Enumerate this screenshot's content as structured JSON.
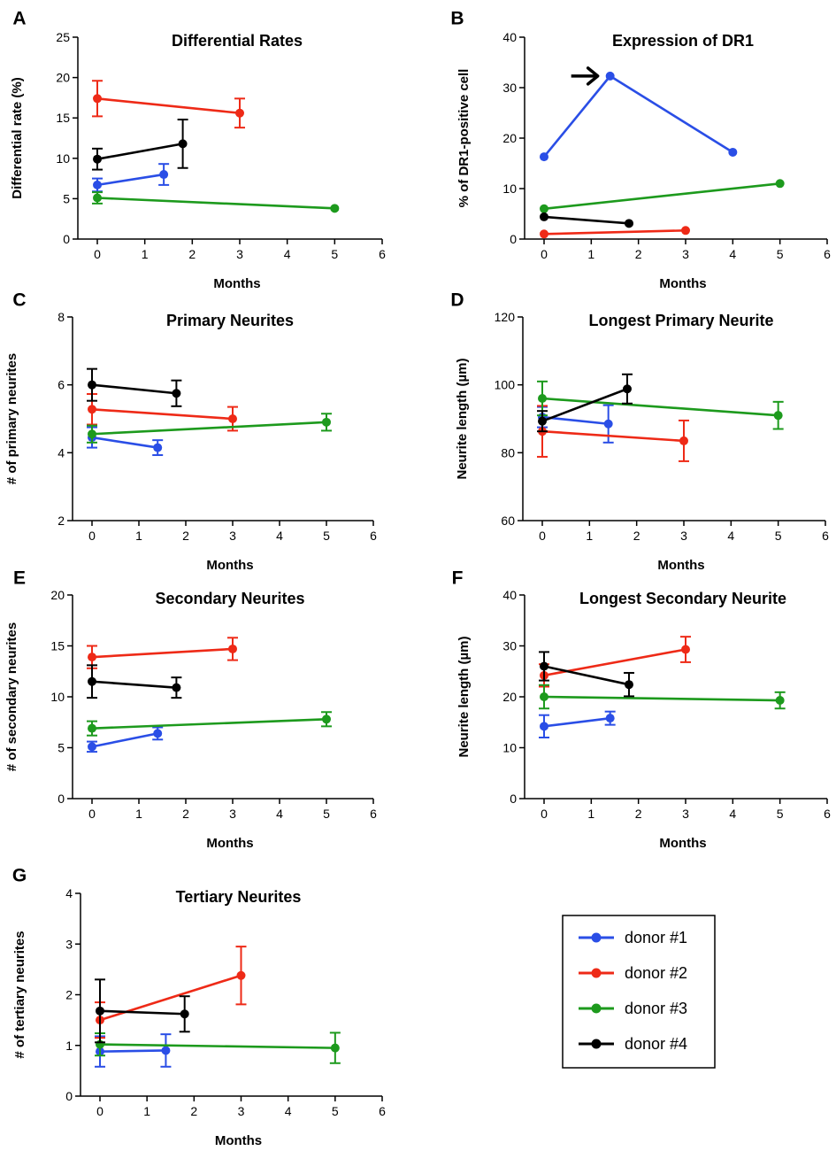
{
  "legend": {
    "entries": [
      {
        "label": "donor #1",
        "color": "#2a4ee6"
      },
      {
        "label": "donor #2",
        "color": "#ee2a17"
      },
      {
        "label": "donor #3",
        "color": "#1d9a1d"
      },
      {
        "label": "donor #4",
        "color": "#000000"
      }
    ]
  },
  "chart_data": [
    {
      "panel": "A",
      "type": "line",
      "title": "Differential Rates",
      "xlabel": "Months",
      "ylabel": "Differential rate (%)",
      "xlim": [
        0,
        6
      ],
      "ylim": [
        0,
        25
      ],
      "xticks": [
        0,
        1,
        2,
        3,
        4,
        5,
        6
      ],
      "yticks": [
        0,
        5,
        10,
        15,
        20,
        25
      ],
      "series": [
        {
          "name": "donor #1",
          "color": "#2a4ee6",
          "points": [
            {
              "x": 0,
              "y": 6.7,
              "err": 0.8
            },
            {
              "x": 1.4,
              "y": 8.0,
              "err": 1.3
            }
          ]
        },
        {
          "name": "donor #2",
          "color": "#ee2a17",
          "points": [
            {
              "x": 0,
              "y": 17.4,
              "err": 2.2
            },
            {
              "x": 3,
              "y": 15.6,
              "err": 1.8
            }
          ]
        },
        {
          "name": "donor #3",
          "color": "#1d9a1d",
          "points": [
            {
              "x": 0,
              "y": 5.1,
              "err": 0.7
            },
            {
              "x": 5,
              "y": 3.8,
              "err": 0
            }
          ]
        },
        {
          "name": "donor #4",
          "color": "#000000",
          "points": [
            {
              "x": 0,
              "y": 9.9,
              "err": 1.3
            },
            {
              "x": 1.8,
              "y": 11.8,
              "err": 3.0
            }
          ]
        }
      ]
    },
    {
      "panel": "B",
      "type": "line",
      "title": "Expression of DR1",
      "xlabel": "Months",
      "ylabel": "% of DR1-positive cell",
      "xlim": [
        0,
        6
      ],
      "ylim": [
        0,
        40
      ],
      "xticks": [
        0,
        1,
        2,
        3,
        4,
        5,
        6
      ],
      "yticks": [
        0,
        10,
        20,
        30,
        40
      ],
      "annotation": {
        "type": "arrow",
        "x": 1.4,
        "y": 32.3
      },
      "series": [
        {
          "name": "donor #1",
          "color": "#2a4ee6",
          "points": [
            {
              "x": 0,
              "y": 16.3,
              "err": 0
            },
            {
              "x": 1.4,
              "y": 32.3,
              "err": 0
            },
            {
              "x": 4,
              "y": 17.2,
              "err": 0
            }
          ]
        },
        {
          "name": "donor #2",
          "color": "#ee2a17",
          "points": [
            {
              "x": 0,
              "y": 1.0,
              "err": 0
            },
            {
              "x": 3,
              "y": 1.7,
              "err": 0
            }
          ]
        },
        {
          "name": "donor #3",
          "color": "#1d9a1d",
          "points": [
            {
              "x": 0,
              "y": 6.0,
              "err": 0
            },
            {
              "x": 5,
              "y": 11.0,
              "err": 0
            }
          ]
        },
        {
          "name": "donor #4",
          "color": "#000000",
          "points": [
            {
              "x": 0,
              "y": 4.4,
              "err": 0
            },
            {
              "x": 1.8,
              "y": 3.1,
              "err": 0
            }
          ]
        }
      ]
    },
    {
      "panel": "C",
      "type": "line",
      "title": "Primary Neurites",
      "xlabel": "Months",
      "ylabel": "# of primary neurites",
      "xlim": [
        0,
        6
      ],
      "ylim": [
        2,
        8
      ],
      "xticks": [
        0,
        1,
        2,
        3,
        4,
        5,
        6
      ],
      "yticks": [
        2,
        4,
        6,
        8
      ],
      "series": [
        {
          "name": "donor #1",
          "color": "#2a4ee6",
          "points": [
            {
              "x": 0,
              "y": 4.45,
              "err": 0.3
            },
            {
              "x": 1.4,
              "y": 4.15,
              "err": 0.22
            }
          ]
        },
        {
          "name": "donor #2",
          "color": "#ee2a17",
          "points": [
            {
              "x": 0,
              "y": 5.28,
              "err": 0.45
            },
            {
              "x": 3,
              "y": 5.0,
              "err": 0.35
            }
          ]
        },
        {
          "name": "donor #3",
          "color": "#1d9a1d",
          "points": [
            {
              "x": 0,
              "y": 4.55,
              "err": 0.25
            },
            {
              "x": 5,
              "y": 4.9,
              "err": 0.25
            }
          ]
        },
        {
          "name": "donor #4",
          "color": "#000000",
          "points": [
            {
              "x": 0,
              "y": 6.0,
              "err": 0.47
            },
            {
              "x": 1.8,
              "y": 5.75,
              "err": 0.38
            }
          ]
        }
      ]
    },
    {
      "panel": "D",
      "type": "line",
      "title": "Longest Primary Neurite",
      "xlabel": "Months",
      "ylabel": "Neurite length (µm)",
      "xlim": [
        0,
        6
      ],
      "ylim": [
        60,
        120
      ],
      "xticks": [
        0,
        1,
        2,
        3,
        4,
        5,
        6
      ],
      "yticks": [
        60,
        80,
        100,
        120
      ],
      "series": [
        {
          "name": "donor #1",
          "color": "#2a4ee6",
          "points": [
            {
              "x": 0,
              "y": 90.5,
              "err": 3.0
            },
            {
              "x": 1.4,
              "y": 88.5,
              "err": 5.5
            }
          ]
        },
        {
          "name": "donor #2",
          "color": "#ee2a17",
          "points": [
            {
              "x": 0,
              "y": 86.3,
              "err": 7.5
            },
            {
              "x": 3,
              "y": 83.5,
              "err": 6.0
            }
          ]
        },
        {
          "name": "donor #3",
          "color": "#1d9a1d",
          "points": [
            {
              "x": 0,
              "y": 96.0,
              "err": 5.0
            },
            {
              "x": 5,
              "y": 91.0,
              "err": 4.0
            }
          ]
        },
        {
          "name": "donor #4",
          "color": "#000000",
          "points": [
            {
              "x": 0,
              "y": 89.3,
              "err": 3.0
            },
            {
              "x": 1.8,
              "y": 98.8,
              "err": 4.3
            }
          ]
        }
      ]
    },
    {
      "panel": "E",
      "type": "line",
      "title": "Secondary Neurites",
      "xlabel": "Months",
      "ylabel": "# of secondary neurites",
      "xlim": [
        0,
        6
      ],
      "ylim": [
        0,
        20
      ],
      "xticks": [
        0,
        1,
        2,
        3,
        4,
        5,
        6
      ],
      "yticks": [
        0,
        5,
        10,
        15,
        20
      ],
      "series": [
        {
          "name": "donor #1",
          "color": "#2a4ee6",
          "points": [
            {
              "x": 0,
              "y": 5.1,
              "err": 0.5
            },
            {
              "x": 1.4,
              "y": 6.4,
              "err": 0.6
            }
          ]
        },
        {
          "name": "donor #2",
          "color": "#ee2a17",
          "points": [
            {
              "x": 0,
              "y": 13.9,
              "err": 1.1
            },
            {
              "x": 3,
              "y": 14.7,
              "err": 1.1
            }
          ]
        },
        {
          "name": "donor #3",
          "color": "#1d9a1d",
          "points": [
            {
              "x": 0,
              "y": 6.9,
              "err": 0.7
            },
            {
              "x": 5,
              "y": 7.8,
              "err": 0.7
            }
          ]
        },
        {
          "name": "donor #4",
          "color": "#000000",
          "points": [
            {
              "x": 0,
              "y": 11.5,
              "err": 1.6
            },
            {
              "x": 1.8,
              "y": 10.9,
              "err": 1.0
            }
          ]
        }
      ]
    },
    {
      "panel": "F",
      "type": "line",
      "title": "Longest Secondary Neurite",
      "xlabel": "Months",
      "ylabel": "Neurite length (µm)",
      "xlim": [
        0,
        6
      ],
      "ylim": [
        0,
        40
      ],
      "xticks": [
        0,
        1,
        2,
        3,
        4,
        5,
        6
      ],
      "yticks": [
        0,
        10,
        20,
        30,
        40
      ],
      "series": [
        {
          "name": "donor #1",
          "color": "#2a4ee6",
          "points": [
            {
              "x": 0,
              "y": 14.2,
              "err": 2.2
            },
            {
              "x": 1.4,
              "y": 15.8,
              "err": 1.3
            }
          ]
        },
        {
          "name": "donor #2",
          "color": "#ee2a17",
          "points": [
            {
              "x": 0,
              "y": 24.2,
              "err": 2.2
            },
            {
              "x": 3,
              "y": 29.3,
              "err": 2.5
            }
          ]
        },
        {
          "name": "donor #3",
          "color": "#1d9a1d",
          "points": [
            {
              "x": 0,
              "y": 20.0,
              "err": 2.3
            },
            {
              "x": 5,
              "y": 19.3,
              "err": 1.6
            }
          ]
        },
        {
          "name": "donor #4",
          "color": "#000000",
          "points": [
            {
              "x": 0,
              "y": 26.0,
              "err": 2.8
            },
            {
              "x": 1.8,
              "y": 22.4,
              "err": 2.3
            }
          ]
        }
      ]
    },
    {
      "panel": "G",
      "type": "line",
      "title": "Tertiary Neurites",
      "xlabel": "Months",
      "ylabel": "# of tertiary neurites",
      "xlim": [
        0,
        6
      ],
      "ylim": [
        0,
        4
      ],
      "xticks": [
        0,
        1,
        2,
        3,
        4,
        5,
        6
      ],
      "yticks": [
        0,
        1,
        2,
        3,
        4
      ],
      "series": [
        {
          "name": "donor #1",
          "color": "#2a4ee6",
          "points": [
            {
              "x": 0,
              "y": 0.88,
              "err": 0.3
            },
            {
              "x": 1.4,
              "y": 0.9,
              "err": 0.32
            }
          ]
        },
        {
          "name": "donor #2",
          "color": "#ee2a17",
          "points": [
            {
              "x": 0,
              "y": 1.5,
              "err": 0.35
            },
            {
              "x": 3,
              "y": 2.38,
              "err": 0.57
            }
          ]
        },
        {
          "name": "donor #3",
          "color": "#1d9a1d",
          "points": [
            {
              "x": 0,
              "y": 1.02,
              "err": 0.22
            },
            {
              "x": 5,
              "y": 0.95,
              "err": 0.3
            }
          ]
        },
        {
          "name": "donor #4",
          "color": "#000000",
          "points": [
            {
              "x": 0,
              "y": 1.68,
              "err": 0.62
            },
            {
              "x": 1.8,
              "y": 1.62,
              "err": 0.35
            }
          ]
        }
      ]
    }
  ]
}
